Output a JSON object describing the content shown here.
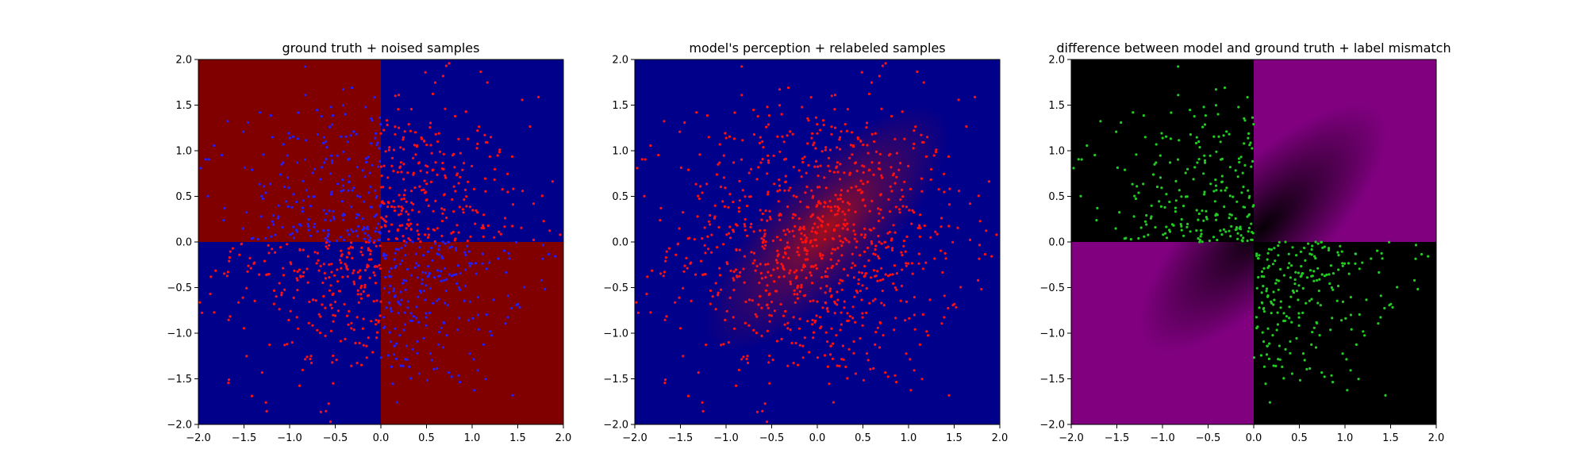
{
  "chart_data": [
    {
      "type": "heatmap",
      "title": "ground truth + noised samples",
      "xlim": [
        -2,
        2
      ],
      "ylim": [
        -2,
        2
      ],
      "xticks": [
        "−2.0",
        "−1.5",
        "−1.0",
        "−0.5",
        "0.0",
        "0.5",
        "1.0",
        "1.5",
        "2.0"
      ],
      "yticks": [
        "−2.0",
        "−1.5",
        "−1.0",
        "−0.5",
        "0.0",
        "0.5",
        "1.0",
        "1.5",
        "2.0"
      ],
      "background": "quadrant",
      "regions": [
        {
          "x": [
            -2,
            0
          ],
          "y": [
            0,
            2
          ],
          "color": "#800000"
        },
        {
          "x": [
            0,
            2
          ],
          "y": [
            -2,
            0
          ],
          "color": "#800000"
        },
        {
          "x": [
            0,
            2
          ],
          "y": [
            0,
            2
          ],
          "color": "#00008b"
        },
        {
          "x": [
            -2,
            0
          ],
          "y": [
            -2,
            0
          ],
          "color": "#00008b"
        }
      ],
      "scatter": {
        "count": 1000,
        "distribution": "normal, std 0.8",
        "colors": {
          "xy_positive": "#ff1010",
          "xy_negative": "#2020ff"
        },
        "note_noised": true
      }
    },
    {
      "type": "heatmap",
      "title": "model's perception + relabeled samples",
      "xlim": [
        -2,
        2
      ],
      "ylim": [
        -2,
        2
      ],
      "xticks": [
        "−2.0",
        "−1.5",
        "−1.0",
        "−0.5",
        "0.0",
        "0.5",
        "1.0",
        "1.5",
        "2.0"
      ],
      "yticks": [
        "−2.0",
        "−1.5",
        "−1.0",
        "−0.5",
        "0.0",
        "0.5",
        "1.0",
        "1.5",
        "2.0"
      ],
      "background": "model",
      "base_color": "#00008b",
      "blob": {
        "center": [
          0.1,
          0.15
        ],
        "direction": [
          0.707,
          0.707
        ],
        "sigma_along": 0.6,
        "sigma_across": 0.22,
        "color": "#b01010"
      },
      "scatter": {
        "count": 1000,
        "distribution": "normal, std 0.8",
        "color": "#ff1010"
      }
    },
    {
      "type": "heatmap",
      "title": "difference between model and ground truth + label mismatch",
      "xlim": [
        -2,
        2
      ],
      "ylim": [
        -2,
        2
      ],
      "xticks": [
        "−2.0",
        "−1.5",
        "−1.0",
        "−0.5",
        "0.0",
        "0.5",
        "1.0",
        "1.5",
        "2.0"
      ],
      "yticks": [
        "−2.0",
        "−1.5",
        "−1.0",
        "−0.5",
        "0.0",
        "0.5",
        "1.0",
        "1.5",
        "2.0"
      ],
      "background": "difference",
      "regions": [
        {
          "x": [
            0,
            2
          ],
          "y": [
            0,
            2
          ],
          "color": "#800080"
        },
        {
          "x": [
            -2,
            0
          ],
          "y": [
            -2,
            0
          ],
          "color": "#800080"
        },
        {
          "x": [
            -2,
            0
          ],
          "y": [
            0,
            2
          ],
          "color": "#000000"
        },
        {
          "x": [
            0,
            2
          ],
          "y": [
            -2,
            0
          ],
          "color": "#000000"
        }
      ],
      "blob": {
        "center": [
          0.1,
          0.15
        ],
        "direction": [
          0.707,
          0.707
        ],
        "sigma_along": 0.6,
        "sigma_across": 0.22,
        "color": "#000000"
      },
      "scatter": {
        "count": 1000,
        "distribution": "normal, std 0.8, only where x*y < 0",
        "color": "#22cc22"
      }
    }
  ]
}
